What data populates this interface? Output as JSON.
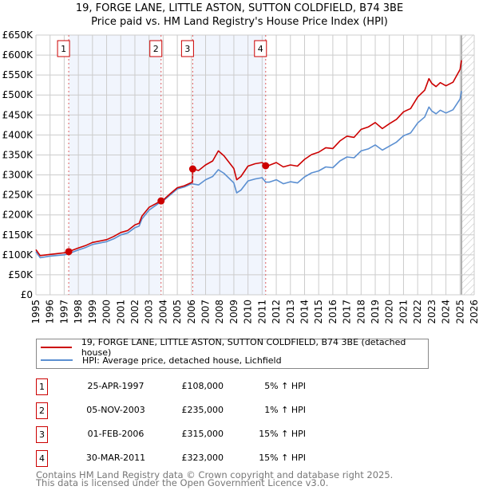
{
  "title_line1": "19, FORGE LANE, LITTLE ASTON, SUTTON COLDFIELD, B74 3BE",
  "title_line2": "Price paid vs. HM Land Registry's House Price Index (HPI)",
  "chart_data": {
    "type": "line",
    "title": "19, FORGE LANE, LITTLE ASTON, SUTTON COLDFIELD, B74 3BE — Price paid vs. HM Land Registry's House Price Index (HPI)",
    "xlim": [
      1995,
      2026
    ],
    "ylim": [
      0,
      650000
    ],
    "x_ticks": [
      "1995",
      "1996",
      "1997",
      "1998",
      "1999",
      "2000",
      "2001",
      "2002",
      "2003",
      "2004",
      "2005",
      "2006",
      "2007",
      "2008",
      "2009",
      "2010",
      "2011",
      "2012",
      "2013",
      "2014",
      "2015",
      "2016",
      "2017",
      "2018",
      "2019",
      "2020",
      "2021",
      "2022",
      "2023",
      "2024",
      "2025",
      "2026"
    ],
    "y_ticks": [
      {
        "v": 0,
        "label": "£0"
      },
      {
        "v": 50000,
        "label": "£50K"
      },
      {
        "v": 100000,
        "label": "£100K"
      },
      {
        "v": 150000,
        "label": "£150K"
      },
      {
        "v": 200000,
        "label": "£200K"
      },
      {
        "v": 250000,
        "label": "£250K"
      },
      {
        "v": 300000,
        "label": "£300K"
      },
      {
        "v": 350000,
        "label": "£350K"
      },
      {
        "v": 400000,
        "label": "£400K"
      },
      {
        "v": 450000,
        "label": "£450K"
      },
      {
        "v": 500000,
        "label": "£500K"
      },
      {
        "v": 550000,
        "label": "£550K"
      },
      {
        "v": 600000,
        "label": "£600K"
      },
      {
        "v": 650000,
        "label": "£650K"
      }
    ],
    "grid": true,
    "shaded_periods": [
      [
        1997.32,
        2003.85
      ],
      [
        2006.09,
        2011.25
      ]
    ],
    "forecast_hatch_from": 2025.1,
    "series": [
      {
        "name": "19, FORGE LANE, LITTLE ASTON, SUTTON COLDFIELD, B74 3BE (detached house)",
        "color": "#cc0000",
        "x": [
          1995,
          1995.3,
          1996,
          1997,
          1997.32,
          1998,
          1998.5,
          1999,
          2000,
          2000.5,
          2001,
          2001.5,
          2002,
          2002.3,
          2002.5,
          2003,
          2003.85,
          2004,
          2004.5,
          2005,
          2005.5,
          2006,
          2006.08,
          2006.09,
          2006.5,
          2007,
          2007.5,
          2007.9,
          2008.3,
          2009,
          2009.2,
          2009.5,
          2010,
          2010.5,
          2011,
          2011.25,
          2011.5,
          2012,
          2012.5,
          2013,
          2013.5,
          2014,
          2014.5,
          2015,
          2015.5,
          2016,
          2016.5,
          2017,
          2017.5,
          2018,
          2018.5,
          2019,
          2019.5,
          2020,
          2020.5,
          2021,
          2021.5,
          2022,
          2022.5,
          2022.8,
          2023,
          2023.3,
          2023.6,
          2024,
          2024.5,
          2025,
          2025.1
        ],
        "y": [
          113000,
          98000,
          101000,
          105000,
          108000,
          117000,
          123000,
          131000,
          138000,
          146000,
          156000,
          161000,
          175000,
          179000,
          197000,
          219000,
          235000,
          237000,
          253000,
          268000,
          273000,
          281000,
          283000,
          315000,
          311000,
          325000,
          335000,
          360000,
          348000,
          316000,
          288000,
          296000,
          322000,
          328000,
          331000,
          323000,
          324000,
          331000,
          320000,
          325000,
          322000,
          339000,
          351000,
          357000,
          368000,
          366000,
          385000,
          397000,
          394000,
          414000,
          420000,
          431000,
          416000,
          428000,
          439000,
          458000,
          466000,
          495000,
          512000,
          541000,
          529000,
          521000,
          531000,
          523000,
          532000,
          564000,
          587000
        ]
      },
      {
        "name": "HPI: Average price, detached house, Lichfield",
        "color": "#5b8fd1",
        "x": [
          1995,
          1995.3,
          1996,
          1997,
          1997.32,
          1998,
          1998.5,
          1999,
          2000,
          2000.5,
          2001,
          2001.5,
          2002,
          2002.3,
          2002.5,
          2003,
          2003.85,
          2004,
          2004.5,
          2005,
          2005.5,
          2006,
          2006.5,
          2007,
          2007.5,
          2007.9,
          2008.3,
          2009,
          2009.2,
          2009.5,
          2010,
          2010.5,
          2011,
          2011.25,
          2011.5,
          2012,
          2012.5,
          2013,
          2013.5,
          2014,
          2014.5,
          2015,
          2015.5,
          2016,
          2016.5,
          2017,
          2017.5,
          2018,
          2018.5,
          2019,
          2019.5,
          2020,
          2020.5,
          2021,
          2021.5,
          2022,
          2022.5,
          2022.8,
          2023,
          2023.3,
          2023.6,
          2024,
          2024.5,
          2025,
          2025.1
        ],
        "y": [
          108000,
          93000,
          97000,
          100000,
          103000,
          112000,
          118000,
          126000,
          133000,
          140000,
          150000,
          155000,
          168000,
          172000,
          190000,
          212000,
          233000,
          235000,
          250000,
          265000,
          270000,
          278000,
          275000,
          288000,
          296000,
          313000,
          304000,
          280000,
          255000,
          262000,
          285000,
          290000,
          293000,
          282000,
          282000,
          288000,
          278000,
          283000,
          280000,
          295000,
          305000,
          310000,
          320000,
          318000,
          335000,
          345000,
          343000,
          360000,
          365000,
          375000,
          362000,
          372000,
          382000,
          398000,
          405000,
          430000,
          445000,
          470000,
          460000,
          453000,
          462000,
          455000,
          463000,
          490000,
          510000
        ]
      }
    ],
    "sales": [
      {
        "id": "1",
        "x": 1997.32,
        "y": 108000
      },
      {
        "id": "2",
        "x": 2003.85,
        "y": 235000
      },
      {
        "id": "3",
        "x": 2006.09,
        "y": 315000
      },
      {
        "id": "4",
        "x": 2011.25,
        "y": 323000
      }
    ]
  },
  "legend": {
    "property": "19, FORGE LANE, LITTLE ASTON, SUTTON COLDFIELD, B74 3BE (detached house)",
    "hpi": "HPI: Average price, detached house, Lichfield"
  },
  "transactions": [
    {
      "num": "1",
      "date": "25-APR-1997",
      "price": "£108,000",
      "hpi": "5% ↑ HPI"
    },
    {
      "num": "2",
      "date": "05-NOV-2003",
      "price": "£235,000",
      "hpi": "1% ↑ HPI"
    },
    {
      "num": "3",
      "date": "01-FEB-2006",
      "price": "£315,000",
      "hpi": "15% ↑ HPI"
    },
    {
      "num": "4",
      "date": "30-MAR-2011",
      "price": "£323,000",
      "hpi": "15% ↑ HPI"
    }
  ],
  "footer_line1": "Contains HM Land Registry data © Crown copyright and database right 2025.",
  "footer_line2": "This data is licensed under the Open Government Licence v3.0."
}
